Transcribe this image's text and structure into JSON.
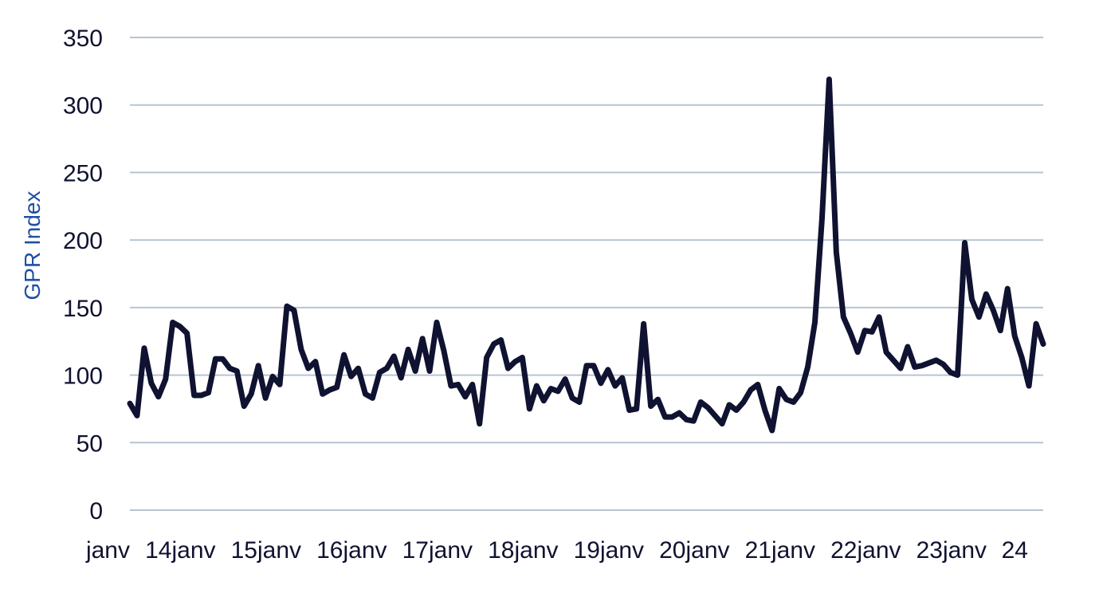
{
  "chart_data": {
    "type": "line",
    "title": "",
    "ylabel": "GPR Index",
    "xlabel": "",
    "ylim": [
      0,
      350
    ],
    "yticks": [
      "0",
      "50",
      "100",
      "150",
      "200",
      "250",
      "300",
      "350"
    ],
    "xtick_labels": [
      "janv",
      "14janv",
      "15janv",
      "16janv",
      "17janv",
      "18janv",
      "19janv",
      "20janv",
      "21janv",
      "22janv",
      "23janv",
      "24"
    ],
    "grid": true,
    "legend": "none",
    "colors": {
      "line": "#0f1230",
      "ylabel": "#1f4fa3",
      "grid": "#b8c4d2",
      "ticks": "#0f1230"
    },
    "series": [
      {
        "values": [
          79,
          70,
          120,
          94,
          84,
          97,
          139,
          136,
          131,
          85,
          85,
          87,
          112,
          112,
          105,
          103,
          77,
          86,
          107,
          83,
          99,
          93,
          151,
          148,
          119,
          105,
          110,
          86,
          89,
          91,
          115,
          99,
          105,
          86,
          83,
          102,
          105,
          114,
          98,
          119,
          103,
          127,
          103,
          139,
          118,
          92,
          93,
          84,
          93,
          64,
          113,
          123,
          126,
          105,
          110,
          113,
          75,
          92,
          81,
          90,
          88,
          97,
          83,
          80,
          107,
          107,
          94,
          104,
          92,
          98,
          74,
          75,
          138,
          77,
          82,
          69,
          69,
          72,
          67,
          66,
          80,
          76,
          70,
          64,
          78,
          74,
          80,
          89,
          93,
          74,
          59,
          90,
          82,
          80,
          87,
          106,
          139,
          216,
          319,
          191,
          143,
          131,
          117,
          133,
          132,
          143,
          117,
          111,
          105,
          121,
          106,
          107,
          109,
          111,
          108,
          102,
          100,
          198,
          156,
          143,
          160,
          148,
          133,
          164,
          129,
          113,
          92,
          138,
          123
        ]
      }
    ]
  }
}
